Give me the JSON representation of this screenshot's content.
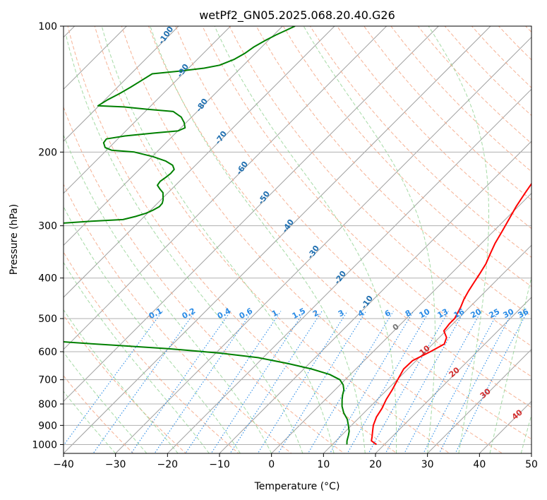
{
  "chart_data": {
    "type": "line",
    "title": "wetPf2_GN05.2025.068.20.40.G26",
    "xlabel": "Temperature (°C)",
    "ylabel": "Pressure (hPa)",
    "xlim": [
      -40,
      50
    ],
    "ylim": [
      1050,
      100
    ],
    "y_scale": "log",
    "grid": true,
    "x_ticks": [
      -40,
      -30,
      -20,
      -10,
      0,
      10,
      20,
      30,
      40,
      50
    ],
    "y_ticks": [
      1000,
      900,
      800,
      700,
      600,
      500,
      400,
      300,
      200,
      100
    ],
    "skew": 45,
    "series": [
      {
        "color": "#ff0000",
        "points": [
          [
            1000,
            18.5
          ],
          [
            980,
            16.8
          ],
          [
            960,
            16.2
          ],
          [
            930,
            15.2
          ],
          [
            900,
            14.2
          ],
          [
            860,
            13.2
          ],
          [
            820,
            12.6
          ],
          [
            780,
            11.7
          ],
          [
            740,
            11.0
          ],
          [
            700,
            10.1
          ],
          [
            660,
            9.2
          ],
          [
            630,
            9.3
          ],
          [
            600,
            11.0
          ],
          [
            575,
            12.2
          ],
          [
            555,
            11.4
          ],
          [
            535,
            9.6
          ],
          [
            515,
            9.3
          ],
          [
            500,
            9.3
          ],
          [
            470,
            8.3
          ],
          [
            450,
            7.4
          ],
          [
            430,
            6.7
          ],
          [
            410,
            6.1
          ],
          [
            390,
            5.5
          ],
          [
            370,
            4.8
          ],
          [
            350,
            3.7
          ],
          [
            330,
            2.6
          ],
          [
            310,
            1.7
          ],
          [
            290,
            0.7
          ],
          [
            270,
            -0.4
          ],
          [
            250,
            -1.3
          ],
          [
            230,
            -2.2
          ],
          [
            215,
            -2.3
          ],
          [
            205,
            -1.9
          ],
          [
            195,
            -1.4
          ],
          [
            180,
            -1.1
          ],
          [
            165,
            -1.0
          ],
          [
            150,
            -1.1
          ],
          [
            140,
            -1.6
          ],
          [
            130,
            -2.6
          ],
          [
            125,
            -3.8
          ],
          [
            120,
            -5.3
          ],
          [
            115,
            -5.1
          ],
          [
            112,
            -3.8
          ],
          [
            108,
            -2.9
          ],
          [
            104,
            -2.6
          ],
          [
            100,
            -2.6
          ]
        ]
      },
      {
        "color": "#008000",
        "points": [
          [
            1000,
            12.8
          ],
          [
            980,
            12.1
          ],
          [
            950,
            11.3
          ],
          [
            930,
            10.7
          ],
          [
            900,
            9.4
          ],
          [
            870,
            8.0
          ],
          [
            840,
            6.1
          ],
          [
            810,
            4.5
          ],
          [
            780,
            3.2
          ],
          [
            760,
            2.4
          ],
          [
            740,
            1.7
          ],
          [
            720,
            0.6
          ],
          [
            700,
            -1.0
          ],
          [
            680,
            -4.0
          ],
          [
            660,
            -8.5
          ],
          [
            640,
            -14.2
          ],
          [
            620,
            -21.0
          ],
          [
            605,
            -29.0
          ],
          [
            590,
            -40.0
          ],
          [
            580,
            -50.0
          ],
          [
            570,
            -60.0
          ],
          [
            560,
            -68.0
          ],
          [
            550,
            -75.0
          ],
          [
            545,
            -79.0
          ],
          [
            540,
            -81.0
          ],
          [
            520,
            -82.5
          ],
          [
            500,
            -83.0
          ],
          [
            480,
            -83.5
          ],
          [
            470,
            -83.8
          ],
          [
            465,
            -80.0
          ],
          [
            460,
            -73.0
          ],
          [
            458,
            -70.0
          ],
          [
            455,
            -72.0
          ],
          [
            450,
            -76.0
          ],
          [
            440,
            -80.0
          ],
          [
            430,
            -83.0
          ],
          [
            420,
            -83.2
          ],
          [
            400,
            -83.8
          ],
          [
            380,
            -84.7
          ],
          [
            360,
            -85.5
          ],
          [
            340,
            -86.2
          ],
          [
            320,
            -86.9
          ],
          [
            310,
            -87.5
          ],
          [
            300,
            -87.8
          ],
          [
            297,
            -86.7
          ],
          [
            293,
            -80.0
          ],
          [
            290,
            -73.5
          ],
          [
            285,
            -71.7
          ],
          [
            280,
            -70.3
          ],
          [
            275,
            -69.5
          ],
          [
            270,
            -69.0
          ],
          [
            265,
            -69.1
          ],
          [
            260,
            -69.6
          ],
          [
            250,
            -71.0
          ],
          [
            245,
            -72.3
          ],
          [
            240,
            -73.5
          ],
          [
            235,
            -73.7
          ],
          [
            230,
            -73.4
          ],
          [
            225,
            -73.2
          ],
          [
            220,
            -73.3
          ],
          [
            215,
            -74.4
          ],
          [
            210,
            -76.6
          ],
          [
            205,
            -79.9
          ],
          [
            200,
            -84.3
          ],
          [
            198,
            -89.0
          ],
          [
            195,
            -90.8
          ],
          [
            190,
            -92.0
          ],
          [
            186,
            -92.2
          ],
          [
            183,
            -89.2
          ],
          [
            180,
            -84.0
          ],
          [
            178,
            -80.0
          ],
          [
            175,
            -79.2
          ],
          [
            170,
            -80.4
          ],
          [
            165,
            -82.0
          ],
          [
            160,
            -84.6
          ],
          [
            158,
            -90.0
          ],
          [
            156,
            -95.0
          ],
          [
            155,
            -100.2
          ],
          [
            150,
            -99.5
          ],
          [
            145,
            -98.4
          ],
          [
            140,
            -97.5
          ],
          [
            135,
            -96.7
          ],
          [
            130,
            -95.9
          ],
          [
            128,
            -91.0
          ],
          [
            126,
            -87.0
          ],
          [
            124,
            -84.6
          ],
          [
            120,
            -82.9
          ],
          [
            116,
            -82.0
          ],
          [
            112,
            -81.5
          ],
          [
            108,
            -80.5
          ],
          [
            105,
            -79.6
          ],
          [
            102,
            -78.4
          ],
          [
            100,
            -77.6
          ]
        ]
      }
    ],
    "dry_adiabat_labels": [
      "-100",
      "-90",
      "-80",
      "-70",
      "-60",
      "-50",
      "-40",
      "-30",
      "-20",
      "-10"
    ],
    "mixing_ratio_labels": [
      "0.1",
      "0.2",
      "0.4",
      "0.6",
      "1",
      "1.5",
      "2",
      "3",
      "4",
      "6",
      "8",
      "10",
      "13",
      "16",
      "20",
      "25",
      "30",
      "36"
    ],
    "moist_adiabat_labels": [
      "0",
      "10",
      "20",
      "30",
      "40"
    ],
    "colors": {
      "isotherm": "#a0a0a0",
      "pressure_grid": "#b0b0b0",
      "dry_adiabat": "#f4a582",
      "moist_adiabat": "#8fd18f",
      "mixing_ratio": "#2b8ce6",
      "dry_label": "#1f6fb0",
      "moist_label": "#d32f2f",
      "zero_label": "#777777",
      "mixing_label": "#2b8ce6"
    }
  }
}
